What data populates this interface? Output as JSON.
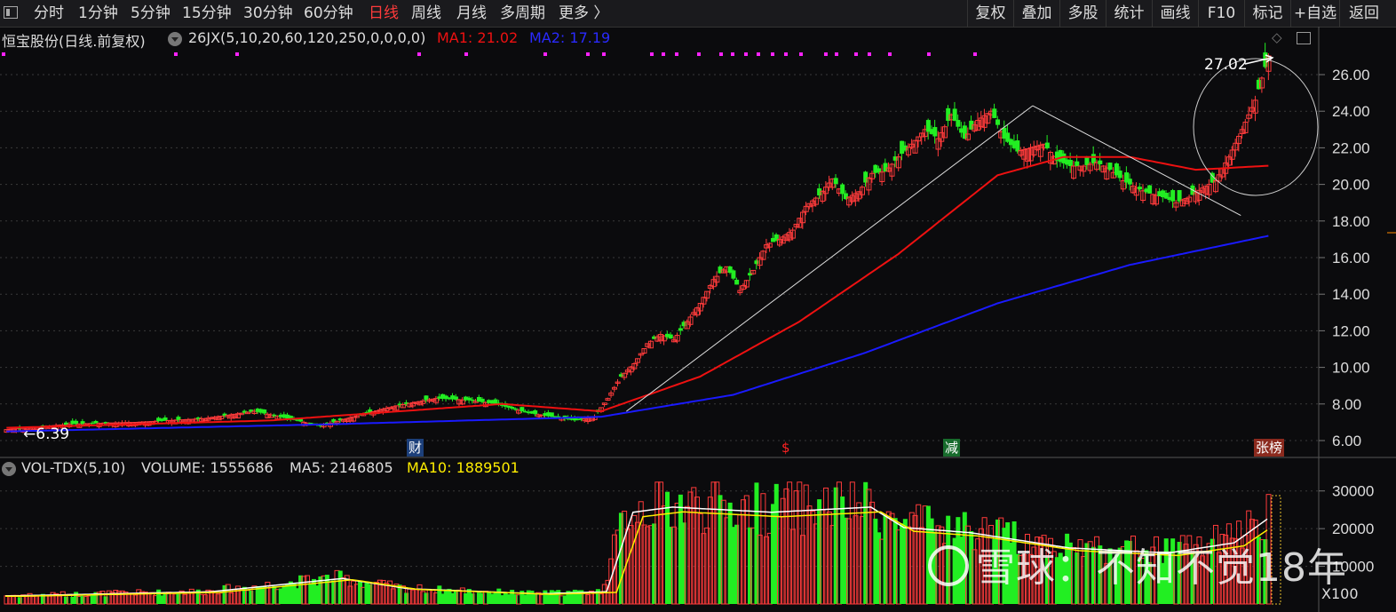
{
  "toolbar": {
    "periods": [
      {
        "label": "分时",
        "active": false
      },
      {
        "label": "1分钟",
        "active": false
      },
      {
        "label": "5分钟",
        "active": false
      },
      {
        "label": "15分钟",
        "active": false
      },
      {
        "label": "30分钟",
        "active": false
      },
      {
        "label": "60分钟",
        "active": false
      },
      {
        "label": "日线",
        "active": true
      },
      {
        "label": "周线",
        "active": false
      },
      {
        "label": "月线",
        "active": false
      },
      {
        "label": "多周期",
        "active": false
      },
      {
        "label": "更多 〉",
        "active": false
      }
    ],
    "right_buttons": [
      "复权",
      "叠加",
      "多股",
      "统计",
      "画线",
      "F10",
      "标记",
      "+自选",
      "返回"
    ]
  },
  "main_header": {
    "stock": "恒宝股份(日线.前复权)",
    "indicator": "26JX(5,10,20,60,120,250,0,0,0,0)",
    "ma1": "MA1: 21.02",
    "ma2": "MA2: 17.19"
  },
  "vol_header": {
    "name": "VOL-TDX(5,10)",
    "volume": "VOLUME: 1555686",
    "ma5": "MA5: 2146805",
    "ma10": "MA10: 1889501"
  },
  "annotations": {
    "high": "27.02",
    "low": "6.39",
    "multiplier": "X100"
  },
  "markers": [
    "财",
    "$",
    "减",
    "张榜"
  ],
  "watermark": "雪球：不知不觉18年",
  "colors": {
    "up": "#ff3b3b",
    "down": "#22ee22",
    "ma1": "#ee1111",
    "ma2": "#1a1aff",
    "vol_ma5": "#ffffff",
    "vol_ma10": "#ffee00",
    "active": "#ff3b3b"
  },
  "chart_data": {
    "type": "candlestick",
    "price_axis": {
      "ticks": [
        "26.00",
        "24.00",
        "22.00",
        "20.00",
        "18.00",
        "16.00",
        "14.00",
        "12.00",
        "10.00",
        "8.00",
        "6.00"
      ],
      "range": [
        5.0,
        27.5
      ]
    },
    "volume_axis": {
      "ticks": [
        "30000",
        "20000",
        "10000"
      ],
      "range": [
        0,
        33000
      ]
    },
    "price_path": [
      [
        0,
        6.6
      ],
      [
        20,
        6.9
      ],
      [
        40,
        7.0
      ],
      [
        60,
        7.2
      ],
      [
        75,
        7.6
      ],
      [
        85,
        7.2
      ],
      [
        95,
        6.8
      ],
      [
        105,
        7.3
      ],
      [
        118,
        7.9
      ],
      [
        130,
        8.3
      ],
      [
        140,
        8.2
      ],
      [
        148,
        8.0
      ],
      [
        158,
        7.5
      ],
      [
        172,
        7.1
      ],
      [
        178,
        7.3
      ],
      [
        182,
        8.3
      ],
      [
        186,
        9.5
      ],
      [
        190,
        10.2
      ],
      [
        194,
        11.3
      ],
      [
        198,
        11.8
      ],
      [
        202,
        11.5
      ],
      [
        206,
        12.5
      ],
      [
        210,
        13.5
      ],
      [
        214,
        14.8
      ],
      [
        218,
        15.5
      ],
      [
        222,
        14.2
      ],
      [
        226,
        15.3
      ],
      [
        230,
        16.7
      ],
      [
        234,
        17.0
      ],
      [
        238,
        17.5
      ],
      [
        242,
        18.8
      ],
      [
        246,
        19.4
      ],
      [
        250,
        20.3
      ],
      [
        254,
        19.2
      ],
      [
        258,
        19.6
      ],
      [
        262,
        20.6
      ],
      [
        266,
        20.7
      ],
      [
        270,
        21.5
      ],
      [
        274,
        22.2
      ],
      [
        278,
        23.0
      ],
      [
        282,
        22.5
      ],
      [
        286,
        23.8
      ],
      [
        290,
        22.5
      ],
      [
        294,
        23.5
      ],
      [
        298,
        24.0
      ],
      [
        302,
        22.5
      ],
      [
        306,
        21.8
      ],
      [
        310,
        22.0
      ],
      [
        314,
        22.2
      ],
      [
        318,
        21.3
      ],
      [
        322,
        21.0
      ],
      [
        326,
        21.0
      ],
      [
        330,
        21.2
      ],
      [
        334,
        20.8
      ],
      [
        338,
        20.2
      ],
      [
        342,
        19.8
      ],
      [
        346,
        19.5
      ],
      [
        350,
        19.3
      ],
      [
        354,
        19.0
      ],
      [
        358,
        19.3
      ],
      [
        362,
        19.8
      ],
      [
        366,
        20.2
      ],
      [
        370,
        21.5
      ],
      [
        374,
        23.0
      ],
      [
        378,
        24.6
      ],
      [
        382,
        27.02
      ]
    ],
    "series": [
      {
        "name": "MA1",
        "values_path": [
          [
            0,
            6.7
          ],
          [
            80,
            7.1
          ],
          [
            150,
            8.0
          ],
          [
            180,
            7.6
          ],
          [
            210,
            9.5
          ],
          [
            240,
            12.5
          ],
          [
            270,
            16.2
          ],
          [
            300,
            20.5
          ],
          [
            320,
            21.5
          ],
          [
            340,
            21.5
          ],
          [
            360,
            20.8
          ],
          [
            382,
            21.02
          ]
        ]
      },
      {
        "name": "MA2",
        "values_path": [
          [
            0,
            6.5
          ],
          [
            100,
            6.9
          ],
          [
            180,
            7.3
          ],
          [
            220,
            8.5
          ],
          [
            260,
            10.8
          ],
          [
            300,
            13.5
          ],
          [
            340,
            15.6
          ],
          [
            382,
            17.19
          ]
        ]
      }
    ],
    "volume_profile": [
      [
        0,
        0.08
      ],
      [
        60,
        0.12
      ],
      [
        100,
        0.25
      ],
      [
        120,
        0.15
      ],
      [
        160,
        0.1
      ],
      [
        180,
        0.12
      ],
      [
        188,
        0.9
      ],
      [
        200,
        0.95
      ],
      [
        230,
        0.9
      ],
      [
        260,
        0.95
      ],
      [
        270,
        0.75
      ],
      [
        290,
        0.7
      ],
      [
        320,
        0.55
      ],
      [
        350,
        0.5
      ],
      [
        370,
        0.6
      ],
      [
        382,
        0.88
      ]
    ]
  }
}
